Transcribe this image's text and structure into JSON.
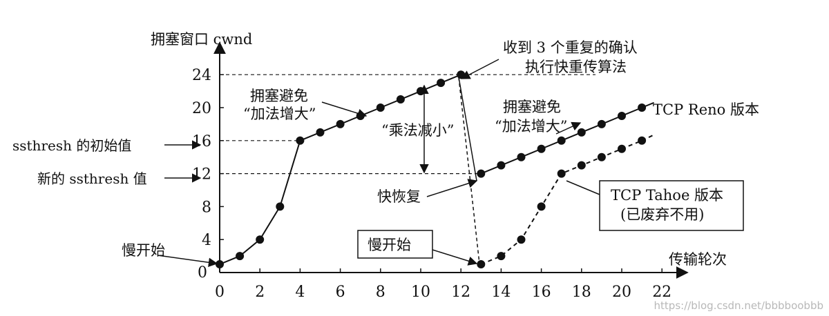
{
  "axes": {
    "ylabel": "拥塞窗口 cwnd",
    "xlabel": "传输轮次",
    "origin": "0"
  },
  "annotations": {
    "three_dup_ack_1": "收到 3 个重复的确认",
    "three_dup_ack_2": "执行快重传算法",
    "ca_left_1": "拥塞避免",
    "ca_left_2": "“加法增大”",
    "md": "“乘法减小”",
    "ca_right_1": "拥塞避免",
    "ca_right_2": "“加法增大”",
    "reno": "TCP Reno 版本",
    "fast_recovery": "快恢复",
    "tahoe_1": "TCP Tahoe 版本",
    "tahoe_2": "(已废弃不用)",
    "slow_start_left": "慢开始",
    "slow_start_box": "慢开始",
    "ssthresh_initial": "ssthresh 的初始值",
    "ssthresh_new": "新的 ssthresh 值"
  },
  "watermark": "https://blog.csdn.net/bbbboobbb",
  "chart_data": {
    "type": "line",
    "xlabel": "传输轮次",
    "ylabel": "拥塞窗口 cwnd",
    "xlim": [
      0,
      22
    ],
    "ylim": [
      0,
      24
    ],
    "x_ticks": [
      0,
      2,
      4,
      6,
      8,
      10,
      12,
      14,
      16,
      18,
      20,
      22
    ],
    "y_ticks": [
      4,
      8,
      12,
      16,
      20,
      24
    ],
    "series": [
      {
        "name": "",
        "x": [
          0,
          1,
          2,
          3,
          4,
          5,
          6,
          7,
          8,
          9,
          10,
          11,
          12
        ],
        "y": [
          1,
          2,
          4,
          8,
          16,
          17,
          18,
          19,
          20,
          21,
          22,
          23,
          24
        ],
        "style": "solid"
      },
      {
        "name": "TCP Reno 版本",
        "x": [
          13,
          14,
          15,
          16,
          17,
          18,
          19,
          20,
          21
        ],
        "y": [
          12,
          13,
          14,
          15,
          16,
          17,
          18,
          19,
          20
        ],
        "style": "solid"
      },
      {
        "name": "TCP Tahoe 版本",
        "x": [
          13,
          14,
          15,
          16,
          17,
          18,
          19,
          20,
          21
        ],
        "y": [
          1,
          2,
          4,
          8,
          12,
          13,
          14,
          15,
          16
        ],
        "style": "dashed"
      }
    ],
    "reference_lines": [
      16,
      12,
      24
    ]
  }
}
